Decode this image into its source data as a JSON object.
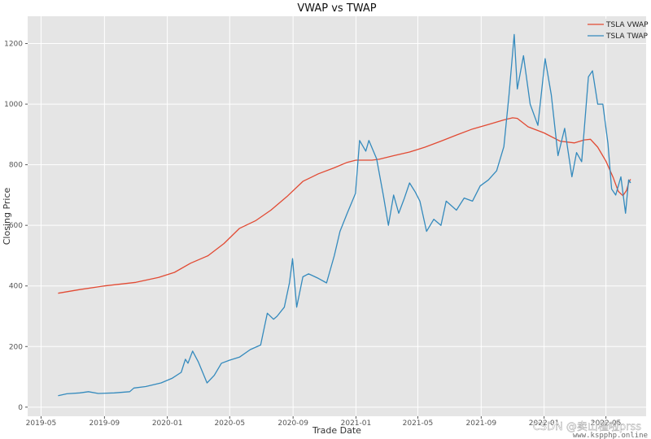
{
  "chart_data": {
    "type": "line",
    "title": "VWAP vs TWAP",
    "xlabel": "Trade Date",
    "ylabel": "Closing Price",
    "x_range": [
      "2019-06-01",
      "2022-06-30"
    ],
    "ylim": [
      -30,
      1290
    ],
    "x_ticks": [
      {
        "label": "2019-05",
        "date": "2019-05-01"
      },
      {
        "label": "2019-09",
        "date": "2019-09-01"
      },
      {
        "label": "2020-01",
        "date": "2020-01-01"
      },
      {
        "label": "2020-05",
        "date": "2020-05-01"
      },
      {
        "label": "2020-09",
        "date": "2020-09-01"
      },
      {
        "label": "2021-01",
        "date": "2021-01-01"
      },
      {
        "label": "2021-05",
        "date": "2021-05-01"
      },
      {
        "label": "2021-09",
        "date": "2021-09-01"
      },
      {
        "label": "2022-01",
        "date": "2022-01-01"
      },
      {
        "label": "2022-05",
        "date": "2022-05-01"
      }
    ],
    "y_ticks": [
      0,
      200,
      400,
      600,
      800,
      1000,
      1200
    ],
    "grid": true,
    "legend_position": "top-right",
    "series": [
      {
        "name": "TSLA VWAP",
        "color": "#e24a33",
        "points": [
          [
            "2019-06-03",
            376
          ],
          [
            "2019-07-15",
            388
          ],
          [
            "2019-09-01",
            400
          ],
          [
            "2019-11-01",
            412
          ],
          [
            "2019-12-15",
            428
          ],
          [
            "2020-01-15",
            445
          ],
          [
            "2020-02-15",
            475
          ],
          [
            "2020-03-20",
            500
          ],
          [
            "2020-04-20",
            540
          ],
          [
            "2020-05-20",
            590
          ],
          [
            "2020-06-20",
            615
          ],
          [
            "2020-07-20",
            650
          ],
          [
            "2020-08-20",
            695
          ],
          [
            "2020-09-20",
            745
          ],
          [
            "2020-10-20",
            770
          ],
          [
            "2020-11-20",
            790
          ],
          [
            "2020-12-15",
            808
          ],
          [
            "2021-01-01",
            815
          ],
          [
            "2021-02-01",
            815
          ],
          [
            "2021-02-15",
            818
          ],
          [
            "2021-03-15",
            830
          ],
          [
            "2021-04-15",
            842
          ],
          [
            "2021-05-15",
            858
          ],
          [
            "2021-06-15",
            878
          ],
          [
            "2021-07-15",
            898
          ],
          [
            "2021-08-15",
            918
          ],
          [
            "2021-09-15",
            933
          ],
          [
            "2021-10-15",
            948
          ],
          [
            "2021-11-01",
            955
          ],
          [
            "2021-11-10",
            953
          ],
          [
            "2021-12-01",
            925
          ],
          [
            "2022-01-01",
            905
          ],
          [
            "2022-02-01",
            878
          ],
          [
            "2022-03-01",
            872
          ],
          [
            "2022-03-20",
            882
          ],
          [
            "2022-04-01",
            884
          ],
          [
            "2022-04-15",
            858
          ],
          [
            "2022-05-01",
            812
          ],
          [
            "2022-05-15",
            758
          ],
          [
            "2022-05-25",
            712
          ],
          [
            "2022-06-03",
            698
          ],
          [
            "2022-06-10",
            715
          ],
          [
            "2022-06-15",
            745
          ],
          [
            "2022-06-18",
            752
          ]
        ]
      },
      {
        "name": "TSLA TWAP",
        "color": "#348abd",
        "points": [
          [
            "2019-06-03",
            38
          ],
          [
            "2019-06-20",
            44
          ],
          [
            "2019-07-15",
            47
          ],
          [
            "2019-08-01",
            51
          ],
          [
            "2019-08-20",
            45
          ],
          [
            "2019-09-20",
            47
          ],
          [
            "2019-10-20",
            51
          ],
          [
            "2019-10-28",
            63
          ],
          [
            "2019-11-20",
            68
          ],
          [
            "2019-12-20",
            80
          ],
          [
            "2020-01-10",
            95
          ],
          [
            "2020-01-28",
            115
          ],
          [
            "2020-02-05",
            158
          ],
          [
            "2020-02-10",
            145
          ],
          [
            "2020-02-19",
            185
          ],
          [
            "2020-03-01",
            150
          ],
          [
            "2020-03-18",
            80
          ],
          [
            "2020-04-01",
            105
          ],
          [
            "2020-04-15",
            145
          ],
          [
            "2020-05-01",
            155
          ],
          [
            "2020-05-20",
            165
          ],
          [
            "2020-06-10",
            190
          ],
          [
            "2020-06-30",
            205
          ],
          [
            "2020-07-13",
            310
          ],
          [
            "2020-07-25",
            290
          ],
          [
            "2020-08-01",
            300
          ],
          [
            "2020-08-15",
            330
          ],
          [
            "2020-08-25",
            410
          ],
          [
            "2020-08-31",
            490
          ],
          [
            "2020-09-08",
            330
          ],
          [
            "2020-09-20",
            430
          ],
          [
            "2020-10-01",
            440
          ],
          [
            "2020-10-20",
            425
          ],
          [
            "2020-11-05",
            410
          ],
          [
            "2020-11-20",
            500
          ],
          [
            "2020-12-01",
            580
          ],
          [
            "2020-12-15",
            640
          ],
          [
            "2020-12-31",
            705
          ],
          [
            "2021-01-08",
            880
          ],
          [
            "2021-01-20",
            845
          ],
          [
            "2021-01-26",
            880
          ],
          [
            "2021-02-10",
            820
          ],
          [
            "2021-02-23",
            700
          ],
          [
            "2021-03-05",
            600
          ],
          [
            "2021-03-15",
            700
          ],
          [
            "2021-03-25",
            640
          ],
          [
            "2021-04-05",
            690
          ],
          [
            "2021-04-15",
            740
          ],
          [
            "2021-04-26",
            710
          ],
          [
            "2021-05-05",
            680
          ],
          [
            "2021-05-18",
            580
          ],
          [
            "2021-06-01",
            620
          ],
          [
            "2021-06-15",
            600
          ],
          [
            "2021-06-25",
            680
          ],
          [
            "2021-07-15",
            650
          ],
          [
            "2021-07-30",
            690
          ],
          [
            "2021-08-15",
            680
          ],
          [
            "2021-08-30",
            730
          ],
          [
            "2021-09-15",
            750
          ],
          [
            "2021-10-01",
            780
          ],
          [
            "2021-10-15",
            860
          ],
          [
            "2021-10-25",
            1030
          ],
          [
            "2021-11-04",
            1230
          ],
          [
            "2021-11-10",
            1050
          ],
          [
            "2021-11-22",
            1160
          ],
          [
            "2021-12-05",
            1000
          ],
          [
            "2021-12-20",
            930
          ],
          [
            "2022-01-03",
            1150
          ],
          [
            "2022-01-15",
            1030
          ],
          [
            "2022-01-28",
            830
          ],
          [
            "2022-02-10",
            920
          ],
          [
            "2022-02-24",
            760
          ],
          [
            "2022-03-05",
            840
          ],
          [
            "2022-03-15",
            810
          ],
          [
            "2022-03-28",
            1090
          ],
          [
            "2022-04-05",
            1110
          ],
          [
            "2022-04-15",
            1000
          ],
          [
            "2022-04-25",
            1000
          ],
          [
            "2022-05-05",
            870
          ],
          [
            "2022-05-12",
            720
          ],
          [
            "2022-05-20",
            700
          ],
          [
            "2022-05-30",
            760
          ],
          [
            "2022-06-08",
            640
          ],
          [
            "2022-06-14",
            750
          ],
          [
            "2022-06-18",
            740
          ]
        ]
      }
    ]
  },
  "watermark": {
    "text": "CSDN @卖山楂啦prss",
    "subtext": "www.kspphp.online"
  }
}
